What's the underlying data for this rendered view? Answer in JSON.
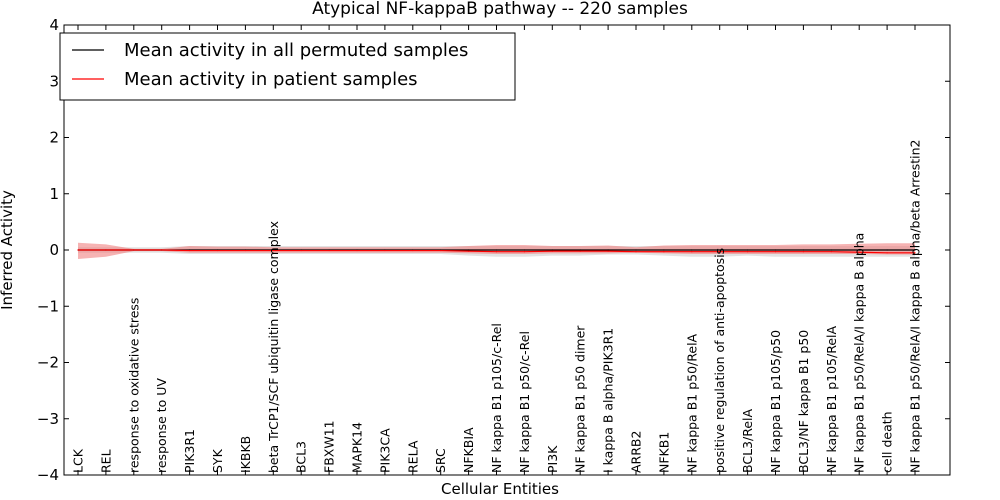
{
  "chart_data": {
    "type": "line",
    "title": "Atypical NF-kappaB pathway -- 220 samples",
    "xlabel": "Cellular Entities",
    "ylabel": "Inferred Activity",
    "ylim": [
      -4,
      4
    ],
    "yticks": [
      -4,
      -3,
      -2,
      -1,
      0,
      1,
      2,
      3,
      4
    ],
    "grid": false,
    "legend_position": "top-left",
    "categories": [
      "LCK",
      "REL",
      "response to oxidative stress",
      "response to UV",
      "PIK3R1",
      "SYK",
      "IKBKB",
      "beta TrCP1/SCF ubiquitin ligase complex",
      "BCL3",
      "FBXW11",
      "MAPK14",
      "PIK3CA",
      "RELA",
      "SRC",
      "NFKBIA",
      "NF kappa B1 p105/c-Rel",
      "NF kappa B1 p50/c-Rel",
      "PI3K",
      "NF kappa B1 p50 dimer",
      "I kappa B alpha/PIK3R1",
      "ARRB2",
      "NFKB1",
      "NF kappa B1 p50/RelA",
      "positive regulation of anti-apoptosis",
      "BCL3/RelA",
      "NF kappa B1 p105/p50",
      "BCL3/NF kappa B1 p50",
      "NF kappa B1 p105/RelA",
      "NF kappa B1 p50/RelA/I kappa B alpha",
      "cell death",
      "NF kappa B1 p50/RelA/I kappa B alpha/beta Arrestin2"
    ],
    "series": [
      {
        "name": "Mean activity in all permuted samples",
        "color": "#000000",
        "values": [
          0,
          0,
          0,
          0,
          0,
          0,
          0,
          0,
          0,
          0,
          0,
          0,
          0,
          0,
          0,
          0,
          0,
          0,
          0,
          0,
          0,
          0,
          0,
          0,
          0,
          0,
          0,
          0,
          0,
          0,
          0
        ],
        "band_upper": [
          0.05,
          0.05,
          0.05,
          0.05,
          0.07,
          0.07,
          0.07,
          0.07,
          0.07,
          0.07,
          0.07,
          0.07,
          0.07,
          0.07,
          0.07,
          0.07,
          0.07,
          0.07,
          0.07,
          0.07,
          0.07,
          0.07,
          0.07,
          0.07,
          0.07,
          0.07,
          0.07,
          0.07,
          0.07,
          0.07,
          0.07
        ],
        "band_lower": [
          -0.05,
          -0.05,
          -0.05,
          -0.05,
          -0.07,
          -0.07,
          -0.07,
          -0.07,
          -0.07,
          -0.07,
          -0.07,
          -0.07,
          -0.07,
          -0.07,
          -0.1,
          -0.12,
          -0.12,
          -0.1,
          -0.1,
          -0.08,
          -0.08,
          -0.1,
          -0.12,
          -0.12,
          -0.1,
          -0.12,
          -0.12,
          -0.12,
          -0.12,
          -0.12,
          -0.12
        ],
        "band_color": "#bfbfbf"
      },
      {
        "name": "Mean activity in patient samples",
        "color": "#ff0000",
        "values": [
          0,
          0,
          0,
          0,
          -0.01,
          -0.01,
          -0.01,
          -0.01,
          -0.01,
          -0.01,
          -0.01,
          -0.01,
          -0.01,
          -0.01,
          -0.02,
          -0.03,
          -0.03,
          -0.02,
          -0.02,
          -0.02,
          -0.03,
          -0.03,
          -0.03,
          -0.03,
          -0.03,
          -0.03,
          -0.03,
          -0.03,
          -0.04,
          -0.05,
          -0.05
        ],
        "band_upper": [
          0.13,
          0.1,
          0.02,
          0.02,
          0.07,
          0.06,
          0.06,
          0.05,
          0.05,
          0.05,
          0.05,
          0.05,
          0.05,
          0.05,
          0.07,
          0.09,
          0.09,
          0.07,
          0.07,
          0.08,
          0.05,
          0.08,
          0.09,
          0.09,
          0.09,
          0.09,
          0.1,
          0.1,
          0.11,
          0.12,
          0.12
        ],
        "band_lower": [
          -0.16,
          -0.12,
          -0.02,
          -0.02,
          -0.05,
          -0.05,
          -0.05,
          -0.05,
          -0.05,
          -0.05,
          -0.05,
          -0.05,
          -0.05,
          -0.05,
          -0.06,
          -0.07,
          -0.07,
          -0.06,
          -0.06,
          -0.06,
          -0.05,
          -0.06,
          -0.07,
          -0.07,
          -0.07,
          -0.07,
          -0.07,
          -0.07,
          -0.07,
          -0.08,
          -0.08
        ],
        "band_color": "#f08080"
      }
    ]
  }
}
